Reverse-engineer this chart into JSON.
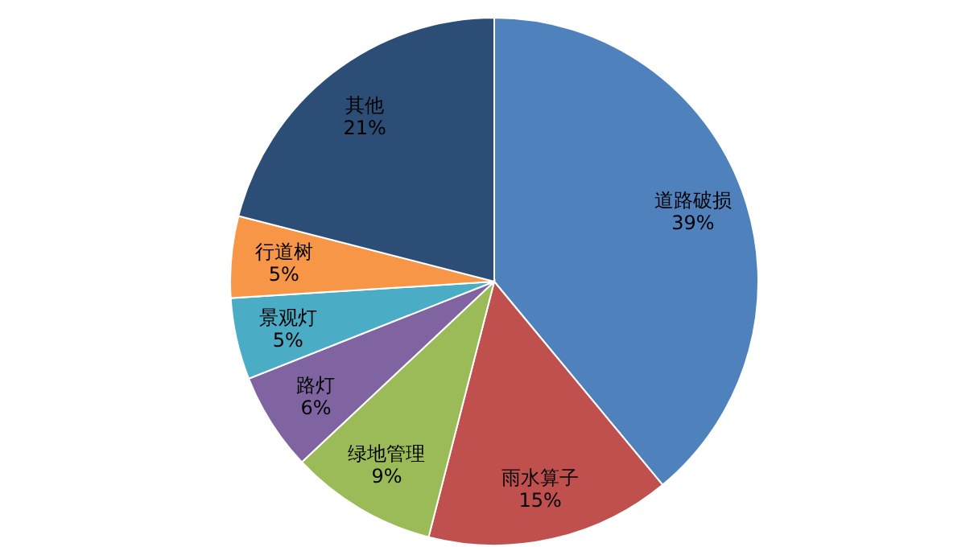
{
  "chart_data": {
    "type": "pie",
    "categories": [
      "道路破损",
      "雨水算子",
      "绿地管理",
      "路灯",
      "景观灯",
      "行道树",
      "其他"
    ],
    "values": [
      39,
      15,
      9,
      6,
      5,
      5,
      21
    ],
    "value_labels": [
      "39%",
      "15%",
      "9%",
      "6%",
      "5%",
      "5%",
      "21%"
    ],
    "colors": [
      "#4f81bd",
      "#c0504d",
      "#9bbb59",
      "#8064a2",
      "#4bacc6",
      "#f79646",
      "#2c4d75"
    ],
    "legend": false
  }
}
